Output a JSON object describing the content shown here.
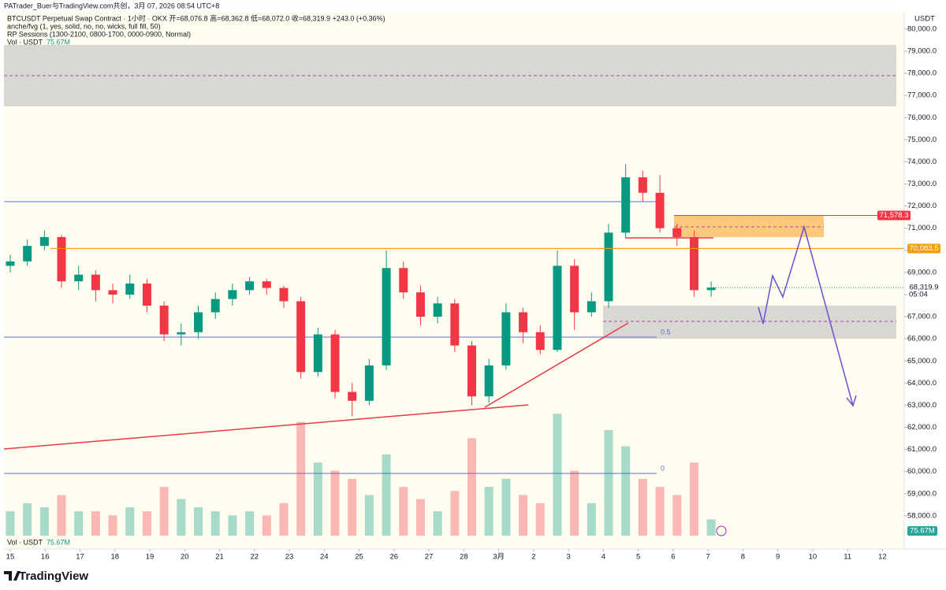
{
  "header": {
    "credit": "PATrader_Buer与TradingView.com共创，3月 07, 2026 08:54 UTC+8",
    "symbol_line": "BTCUSDT Perpetual Swap Contract · 1小时 · OKX  开=68,076.8  高=68,362.8  低=68,072.0  收=68,319.9  +243.0 (+0.36%)",
    "indicator_1": "anche/fvg (1, yes, solid, no, no, wicks, full fill, 50)",
    "indicator_2": "RP Sessions (1300-2100, 0800-1700, 0000-0900, Normal)",
    "vol_label": "Vol · USDT",
    "vol_value": "75.67M"
  },
  "chart_data": {
    "type": "candlestick",
    "t": [
      0,
      0.49,
      0.98,
      1.47,
      1.96,
      2.45,
      2.94,
      3.43,
      3.92,
      4.41,
      4.9,
      5.39,
      5.88,
      6.37,
      6.86,
      7.35,
      7.84,
      8.33,
      8.82,
      9.31,
      9.8,
      10.29,
      10.78,
      11.27,
      11.76,
      12.25,
      12.74,
      13.23,
      13.72,
      14.21,
      14.7,
      15.19,
      15.68,
      16.17,
      16.66,
      17.15,
      17.64,
      18.13,
      18.62,
      19.11,
      19.6,
      20.09
    ],
    "open": [
      69300,
      69500,
      70200,
      70600,
      68600,
      68900,
      68200,
      68000,
      68500,
      67500,
      66200,
      66300,
      67200,
      67800,
      68200,
      68600,
      68300,
      67700,
      64500,
      66200,
      63600,
      63200,
      64800,
      69200,
      68100,
      67000,
      67600,
      65700,
      63400,
      64800,
      67200,
      66300,
      65500,
      69300,
      67200,
      67700,
      70800,
      73300,
      72600,
      71000,
      70600,
      68200
    ],
    "high": [
      69800,
      70500,
      70900,
      70700,
      69300,
      69100,
      68500,
      68900,
      68700,
      67700,
      66700,
      67500,
      68100,
      68500,
      68800,
      68700,
      68400,
      67900,
      66500,
      66400,
      64000,
      65100,
      70000,
      69500,
      68400,
      67900,
      67800,
      65900,
      65100,
      67600,
      67400,
      66600,
      70000,
      69600,
      68100,
      71200,
      73900,
      73600,
      73400,
      71200,
      70900,
      68600
    ],
    "low": [
      69000,
      69300,
      70000,
      68300,
      68200,
      67700,
      67600,
      67800,
      67200,
      65900,
      65700,
      66000,
      66900,
      67500,
      68000,
      68000,
      67400,
      64200,
      64300,
      63300,
      62500,
      63000,
      64600,
      67800,
      66600,
      66700,
      65400,
      63000,
      63100,
      64600,
      65800,
      65300,
      65400,
      66400,
      67000,
      67400,
      70600,
      72200,
      70800,
      70200,
      67900,
      67900
    ],
    "close": [
      69500,
      70200,
      70600,
      68600,
      68900,
      68200,
      68000,
      68500,
      67500,
      66200,
      66300,
      67200,
      67800,
      68200,
      68600,
      68300,
      67700,
      64500,
      66200,
      63600,
      63200,
      64800,
      69200,
      68100,
      67000,
      67600,
      65700,
      63400,
      64800,
      67200,
      66300,
      65500,
      69300,
      67200,
      67700,
      70800,
      73300,
      72600,
      71000,
      70600,
      68200,
      68319.9
    ],
    "volume": [
      30,
      40,
      35,
      50,
      30,
      30,
      25,
      35,
      30,
      60,
      45,
      35,
      30,
      25,
      30,
      25,
      40,
      140,
      90,
      80,
      70,
      50,
      100,
      60,
      45,
      30,
      55,
      120,
      60,
      70,
      50,
      40,
      150,
      80,
      40,
      130,
      110,
      70,
      60,
      50,
      90,
      20
    ],
    "volume_lim": [
      0,
      160
    ],
    "xlim": [
      -0.18,
      25.6
    ],
    "xticks": [
      {
        "value": 0,
        "label": "15"
      },
      {
        "value": 1,
        "label": "16"
      },
      {
        "value": 2,
        "label": "17"
      },
      {
        "value": 3,
        "label": "18"
      },
      {
        "value": 4,
        "label": "19"
      },
      {
        "value": 5,
        "label": "20"
      },
      {
        "value": 6,
        "label": "21"
      },
      {
        "value": 7,
        "label": "22"
      },
      {
        "value": 8,
        "label": "23"
      },
      {
        "value": 9,
        "label": "24"
      },
      {
        "value": 10,
        "label": "25"
      },
      {
        "value": 11,
        "label": "26"
      },
      {
        "value": 12,
        "label": "27"
      },
      {
        "value": 13,
        "label": "28"
      },
      {
        "value": 14,
        "label": "3月"
      },
      {
        "value": 15,
        "label": "2"
      },
      {
        "value": 16,
        "label": "3"
      },
      {
        "value": 17,
        "label": "4"
      },
      {
        "value": 18,
        "label": "5"
      },
      {
        "value": 19,
        "label": "6"
      },
      {
        "value": 20,
        "label": "7"
      },
      {
        "value": 21,
        "label": "8"
      },
      {
        "value": 22,
        "label": "9"
      },
      {
        "value": 23,
        "label": "10"
      },
      {
        "value": 24,
        "label": "11"
      },
      {
        "value": 25,
        "label": "12"
      }
    ],
    "ylim": [
      56500,
      80780
    ],
    "yticks": [
      {
        "value": 58000,
        "label": "58,000.0"
      },
      {
        "value": 59000,
        "label": "59,000.0"
      },
      {
        "value": 60000,
        "label": "60,000.0"
      },
      {
        "value": 61000,
        "label": "61,000.0"
      },
      {
        "value": 62000,
        "label": "62,000.0"
      },
      {
        "value": 63000,
        "label": "63,000.0"
      },
      {
        "value": 64000,
        "label": "64,000.0"
      },
      {
        "value": 65000,
        "label": "65,000.0"
      },
      {
        "value": 66000,
        "label": "66,000.0"
      },
      {
        "value": 67000,
        "label": "67,000.0"
      },
      {
        "value": 68000,
        "label": "68,000.0"
      },
      {
        "value": 69000,
        "label": "69,000.0"
      },
      {
        "value": 70000,
        "label": "70,000.0"
      },
      {
        "value": 71000,
        "label": "71,000.0"
      },
      {
        "value": 72000,
        "label": "72,000.0"
      },
      {
        "value": 73000,
        "label": "73,000.0"
      },
      {
        "value": 74000,
        "label": "74,000.0"
      },
      {
        "value": 75000,
        "label": "75,000.0"
      },
      {
        "value": 76000,
        "label": "76,000.0"
      },
      {
        "value": 77000,
        "label": "77,000.0"
      },
      {
        "value": 78000,
        "label": "78,000.0"
      },
      {
        "value": 79000,
        "label": "79,000.0"
      },
      {
        "value": 80000,
        "label": "80,000.0"
      }
    ],
    "y_axis_unit": "USDT",
    "annotations": [
      {
        "value": 71578.3,
        "label": "71,578.3",
        "color": "#f23645"
      },
      {
        "value": 70083.5,
        "label": "70,083.5",
        "color": "#f59d0e"
      },
      {
        "value": 68319.9,
        "label": "68,319.9",
        "time": "05:04",
        "color": "#ffffff"
      }
    ],
    "level_labels": [
      "0.5",
      "0"
    ],
    "vol_badge": "75.67M",
    "colors": {
      "up": "#089981",
      "down": "#f23645"
    }
  },
  "footer": {
    "vol_label": "Vol · USDT",
    "vol_value": "75.67M",
    "brand": "TradingView"
  }
}
